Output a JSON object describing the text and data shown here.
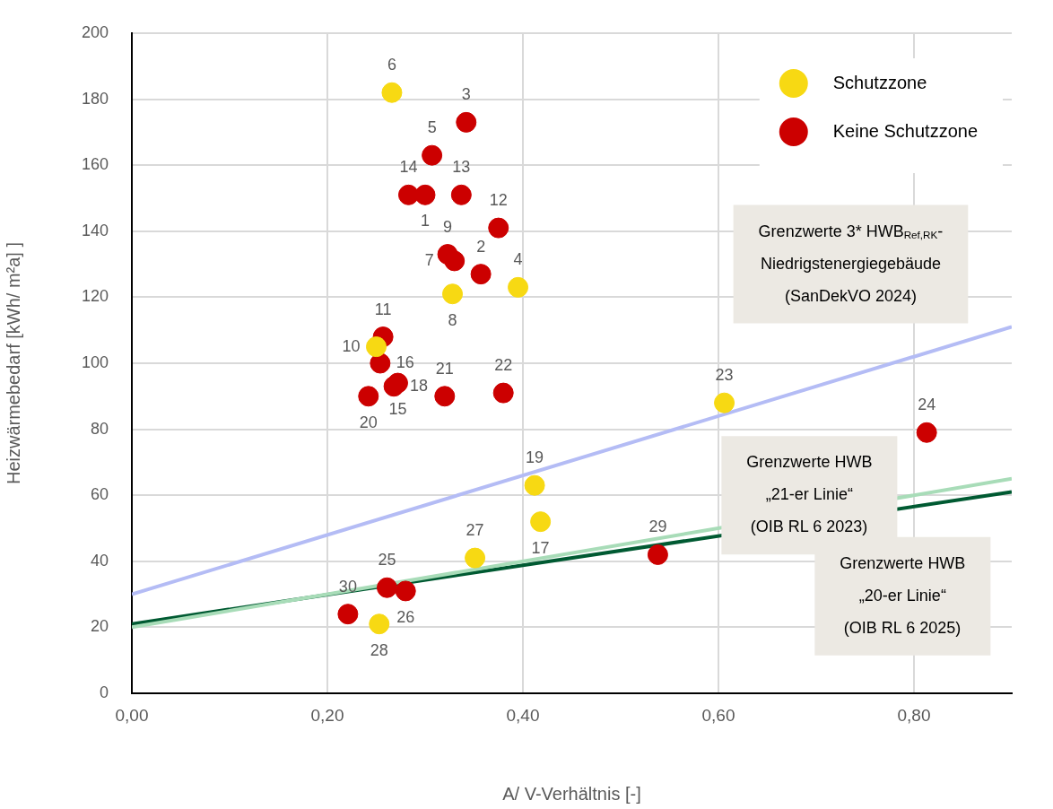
{
  "chart_data": {
    "type": "scatter",
    "xlabel": "A/ V-Verhältnis [-]",
    "ylabel": "Heizwärmebedarf [kWh/ m²a] ]",
    "xlim": [
      0,
      0.9
    ],
    "xticks": [
      {
        "value": 0,
        "label": "0,00"
      },
      {
        "value": 0.2,
        "label": "0,20"
      },
      {
        "value": 0.4,
        "label": "0,40"
      },
      {
        "value": 0.6,
        "label": "0,60"
      },
      {
        "value": 0.8,
        "label": "0,80"
      }
    ],
    "ylim": [
      0,
      200
    ],
    "yticks": [
      0,
      20,
      40,
      60,
      80,
      100,
      120,
      140,
      160,
      180,
      200
    ],
    "grid": true,
    "legend": "top right",
    "series": [
      {
        "name": "Schutzzone",
        "marker": "circle",
        "color": "#f7d913",
        "x": [
          0.266,
          0.328,
          0.395,
          0.25,
          0.606,
          0.412,
          0.418,
          0.351,
          0.253
        ],
        "values": [
          182,
          121,
          123,
          105,
          88,
          63,
          52,
          41,
          21
        ]
      },
      {
        "name": "Keine Schutzzone",
        "marker": "circle",
        "color": "#cc0000",
        "x": [
          0.342,
          0.307,
          0.283,
          0.3,
          0.337,
          0.375,
          0.323,
          0.33,
          0.357,
          0.257,
          0.254,
          0.268,
          0.272,
          0.242,
          0.32,
          0.38,
          0.813,
          0.538,
          0.261,
          0.28,
          0.221
        ],
        "values": [
          173,
          163,
          151,
          151,
          151,
          141,
          133,
          131,
          127,
          108,
          100,
          93,
          94,
          90,
          90,
          91,
          79,
          42,
          32,
          31,
          24
        ]
      },
      {
        "name": "Grenzwerte 3* HWB$_{Ref,RK}$-\nNiedrigstenergiegebäude\n(SanDekVO 2024)",
        "type": "line",
        "color": "#b4bcf5",
        "x": [
          0,
          0.9
        ],
        "values": [
          30,
          111
        ]
      },
      {
        "name": "Grenzwerte HWB\n„21-er Linie“\n(OIB RL 6 2023)",
        "type": "line",
        "color": "#a8dcb8",
        "x": [
          0,
          0.9
        ],
        "values": [
          20,
          65
        ]
      },
      {
        "name": "Grenzwerte HWB\n„20-er Linie“\n(OIB RL 6 2025)",
        "type": "line",
        "color": "#005a32",
        "x": [
          0,
          0.9
        ],
        "values": [
          21,
          61
        ]
      }
    ],
    "annotations": [
      {
        "text": "6",
        "x": 0.266,
        "y": 182
      },
      {
        "text": "8",
        "x": 0.328,
        "y": 121
      },
      {
        "text": "4",
        "x": 0.395,
        "y": 123
      },
      {
        "text": "10",
        "x": 0.25,
        "y": 105
      },
      {
        "text": "23",
        "x": 0.606,
        "y": 88
      },
      {
        "text": "19",
        "x": 0.412,
        "y": 63
      },
      {
        "text": "17",
        "x": 0.418,
        "y": 52
      },
      {
        "text": "27",
        "x": 0.351,
        "y": 41
      },
      {
        "text": "28",
        "x": 0.253,
        "y": 21
      },
      {
        "text": "3",
        "x": 0.342,
        "y": 173
      },
      {
        "text": "5",
        "x": 0.307,
        "y": 163
      },
      {
        "text": "14",
        "x": 0.283,
        "y": 151
      },
      {
        "text": "1",
        "x": 0.3,
        "y": 151
      },
      {
        "text": "13",
        "x": 0.337,
        "y": 151
      },
      {
        "text": "12",
        "x": 0.375,
        "y": 141
      },
      {
        "text": "9",
        "x": 0.323,
        "y": 133
      },
      {
        "text": "7",
        "x": 0.33,
        "y": 131
      },
      {
        "text": "2",
        "x": 0.357,
        "y": 127
      },
      {
        "text": "11",
        "x": 0.257,
        "y": 108
      },
      {
        "text": "16",
        "x": 0.254,
        "y": 100
      },
      {
        "text": "15",
        "x": 0.272,
        "y": 94
      },
      {
        "text": "18",
        "x": 0.268,
        "y": 93
      },
      {
        "text": "20",
        "x": 0.242,
        "y": 90
      },
      {
        "text": "21",
        "x": 0.32,
        "y": 90
      },
      {
        "text": "22",
        "x": 0.38,
        "y": 91
      },
      {
        "text": "24",
        "x": 0.813,
        "y": 79
      },
      {
        "text": "29",
        "x": 0.538,
        "y": 42
      },
      {
        "text": "25",
        "x": 0.261,
        "y": 32
      },
      {
        "text": "26",
        "x": 0.28,
        "y": 31
      },
      {
        "text": "30",
        "x": 0.221,
        "y": 24
      }
    ]
  }
}
